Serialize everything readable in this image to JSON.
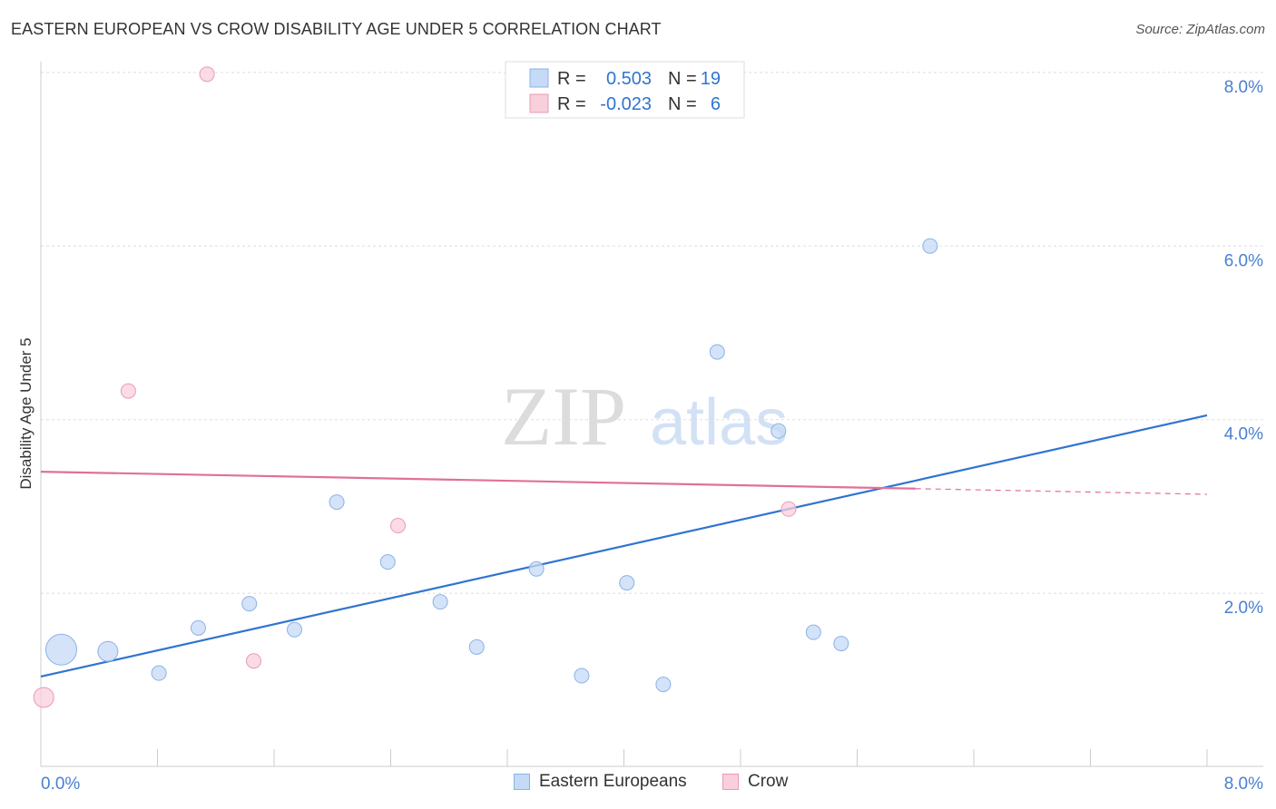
{
  "header": {
    "title": "EASTERN EUROPEAN VS CROW DISABILITY AGE UNDER 5 CORRELATION CHART",
    "source": "Source: ZipAtlas.com"
  },
  "colors": {
    "blue_fill": "#c5daf6",
    "blue_stroke": "#8ab2e8",
    "blue_line": "#2f74d0",
    "pink_fill": "#f9cfdc",
    "pink_stroke": "#ec9ab3",
    "pink_line": "#e0709a",
    "tick_text": "#4a7fd0"
  },
  "legend": {
    "rows": [
      {
        "r_label": "R =",
        "r_value": "0.503",
        "n_label": "N =",
        "n_value": "19"
      },
      {
        "r_label": "R =",
        "r_value": "-0.023",
        "n_label": "N =",
        "n_value": "6"
      }
    ]
  },
  "watermark": {
    "zip": "ZIP",
    "atlas": "atlas"
  },
  "chart_data": {
    "type": "scatter",
    "title": "EASTERN EUROPEAN VS CROW DISABILITY AGE UNDER 5 CORRELATION CHART",
    "xlabel": "",
    "ylabel": "Disability Age Under 5",
    "xlim": [
      0,
      8
    ],
    "ylim": [
      0,
      8
    ],
    "y_ticks": [
      "2.0%",
      "4.0%",
      "6.0%",
      "8.0%"
    ],
    "y_tick_values": [
      2,
      4,
      6,
      8
    ],
    "x_tick_labels": [
      "0.0%",
      "8.0%"
    ],
    "series": [
      {
        "name": "Eastern Europeans",
        "color": "blue",
        "points": [
          {
            "x": 0.14,
            "y": 1.35,
            "size": "large"
          },
          {
            "x": 0.46,
            "y": 1.33,
            "size": "medium"
          },
          {
            "x": 0.81,
            "y": 1.08,
            "size": "small"
          },
          {
            "x": 1.08,
            "y": 1.6,
            "size": "small"
          },
          {
            "x": 1.43,
            "y": 1.88,
            "size": "small"
          },
          {
            "x": 1.74,
            "y": 1.58,
            "size": "small"
          },
          {
            "x": 2.03,
            "y": 3.05,
            "size": "small"
          },
          {
            "x": 2.38,
            "y": 2.36,
            "size": "small"
          },
          {
            "x": 2.74,
            "y": 1.9,
            "size": "small"
          },
          {
            "x": 2.99,
            "y": 1.38,
            "size": "small"
          },
          {
            "x": 3.4,
            "y": 2.28,
            "size": "small"
          },
          {
            "x": 3.71,
            "y": 1.05,
            "size": "small"
          },
          {
            "x": 4.02,
            "y": 2.12,
            "size": "small"
          },
          {
            "x": 4.27,
            "y": 0.95,
            "size": "small"
          },
          {
            "x": 4.64,
            "y": 4.78,
            "size": "small"
          },
          {
            "x": 5.06,
            "y": 3.87,
            "size": "small"
          },
          {
            "x": 5.3,
            "y": 1.55,
            "size": "small"
          },
          {
            "x": 5.49,
            "y": 1.42,
            "size": "small"
          },
          {
            "x": 6.1,
            "y": 6.0,
            "size": "small"
          }
        ],
        "trend": {
          "x0": 0,
          "y0": 1.04,
          "x1": 8,
          "y1": 4.05
        }
      },
      {
        "name": "Crow",
        "color": "pink",
        "points": [
          {
            "x": 0.02,
            "y": 0.8,
            "size": "medium"
          },
          {
            "x": 0.6,
            "y": 4.33,
            "size": "small"
          },
          {
            "x": 1.14,
            "y": 7.98,
            "size": "small"
          },
          {
            "x": 1.46,
            "y": 1.22,
            "size": "small"
          },
          {
            "x": 2.45,
            "y": 2.78,
            "size": "small"
          },
          {
            "x": 5.13,
            "y": 2.97,
            "size": "small"
          }
        ],
        "trend": {
          "x0": 0,
          "y0": 3.4,
          "x1": 8,
          "y1": 3.14,
          "solid_until_x": 6.0
        }
      }
    ]
  }
}
